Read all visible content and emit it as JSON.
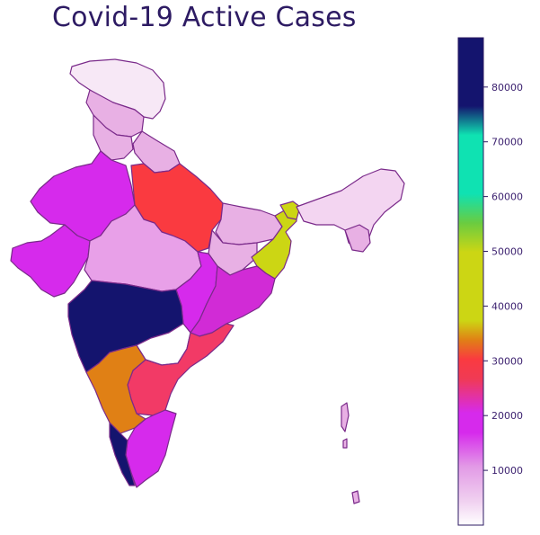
{
  "title": "Covid-19 Active Cases",
  "colors": {
    "border": "#7a2a8a",
    "title": "#2d1b63",
    "maharashtra": "#14146e",
    "karnataka": "#e08015",
    "tamil_nadu": "#d62aec",
    "kerala": "#cc33ee",
    "andhra_pradesh": "#f23a66",
    "telangana": "#ffffff",
    "uttar_pradesh": "#fa3a40",
    "bihar": "#e8b0e4",
    "west_bengal": "#ccd614",
    "rajasthan": "#d62aec",
    "gujarat": "#d62aec",
    "madhya_pradesh": "#e8a0e8",
    "chhattisgarh": "#d62aec",
    "odisha": "#d12bd6",
    "north_east": "#f3d5f1",
    "jammu_kashmir": "#f7e8f6"
  },
  "colorbar": {
    "min": 0,
    "max": 89000,
    "ticks": [
      {
        "value": 10000,
        "label": "10000"
      },
      {
        "value": 20000,
        "label": "20000"
      },
      {
        "value": 30000,
        "label": "30000"
      },
      {
        "value": 40000,
        "label": "40000"
      },
      {
        "value": 50000,
        "label": "50000"
      },
      {
        "value": 60000,
        "label": "60000"
      },
      {
        "value": 70000,
        "label": "70000"
      },
      {
        "value": 80000,
        "label": "80000"
      }
    ],
    "gradient": [
      {
        "stop": 0.0,
        "color": "#ffffff"
      },
      {
        "stop": 0.05,
        "color": "#f0d0f0"
      },
      {
        "stop": 0.12,
        "color": "#e29ae6"
      },
      {
        "stop": 0.19,
        "color": "#d62aec"
      },
      {
        "stop": 0.23,
        "color": "#d62aec"
      },
      {
        "stop": 0.3,
        "color": "#f03a55"
      },
      {
        "stop": 0.34,
        "color": "#fa3a40"
      },
      {
        "stop": 0.38,
        "color": "#e08015"
      },
      {
        "stop": 0.42,
        "color": "#ccd614"
      },
      {
        "stop": 0.56,
        "color": "#ccd614"
      },
      {
        "stop": 0.62,
        "color": "#6acc40"
      },
      {
        "stop": 0.68,
        "color": "#0fe2b2"
      },
      {
        "stop": 0.8,
        "color": "#0fe2b2"
      },
      {
        "stop": 0.86,
        "color": "#14146e"
      },
      {
        "stop": 1.0,
        "color": "#14146e"
      }
    ]
  }
}
